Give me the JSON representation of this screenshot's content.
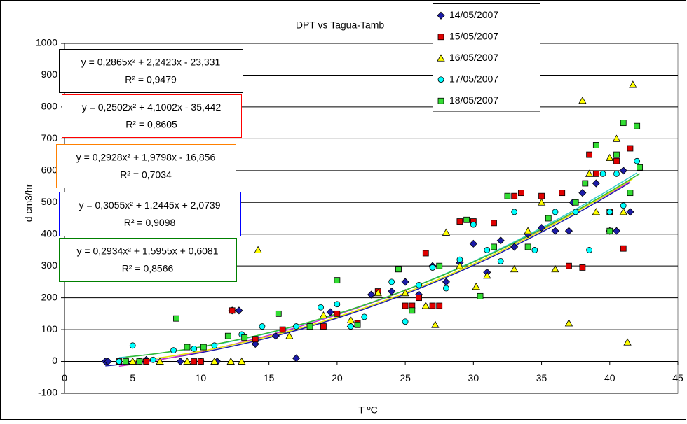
{
  "chart_data": {
    "type": "scatter",
    "title": "DPT vs Tagua-Tamb",
    "x_label": "T ºC",
    "y_label": "d cm3/hr",
    "xlim": [
      0,
      45
    ],
    "xticks": [
      0,
      5,
      10,
      15,
      20,
      25,
      30,
      35,
      40,
      45
    ],
    "ylim": [
      -100,
      1000
    ],
    "yticks": [
      -100,
      0,
      100,
      200,
      300,
      400,
      500,
      600,
      700,
      800,
      900,
      1000
    ],
    "grid": true,
    "legend": "top-right",
    "series": [
      {
        "name": "14/05/2007",
        "color": "#1c1ca8",
        "marker": "diamond",
        "x": [
          3,
          3.2,
          5.5,
          6,
          8.5,
          10,
          11.2,
          12.3,
          12.8,
          14,
          15.5,
          17,
          19.5,
          21,
          22.5,
          24,
          25,
          26,
          27,
          28,
          29,
          30,
          31,
          32,
          33,
          34,
          35,
          36,
          37,
          37.3,
          38,
          39,
          40,
          40.5,
          41,
          41.5
        ],
        "values": [
          0,
          0,
          0,
          5,
          0,
          0,
          0,
          160,
          160,
          55,
          80,
          10,
          155,
          110,
          210,
          220,
          250,
          210,
          300,
          250,
          310,
          370,
          280,
          380,
          360,
          400,
          420,
          410,
          410,
          500,
          530,
          560,
          410,
          410,
          600,
          470
        ]
      },
      {
        "name": "15/05/2007",
        "color": "#e00000",
        "marker": "square",
        "x": [
          4,
          6,
          9.5,
          10,
          12.3,
          14,
          16,
          19,
          20,
          21.5,
          23,
          24.5,
          25,
          25.5,
          26,
          26.5,
          27,
          27.5,
          29,
          30,
          31.5,
          33,
          33.5,
          35,
          36.5,
          37,
          38,
          38.5,
          39,
          40,
          40.5,
          41,
          41.5
        ],
        "values": [
          0,
          0,
          0,
          0,
          160,
          70,
          100,
          110,
          150,
          120,
          220,
          290,
          175,
          175,
          200,
          340,
          175,
          175,
          440,
          440,
          435,
          520,
          530,
          520,
          530,
          300,
          295,
          650,
          590,
          470,
          630,
          355,
          670
        ]
      },
      {
        "name": "16/05/2007",
        "color": "#ffff00",
        "marker": "triangle",
        "x": [
          5,
          7,
          9,
          11,
          12.2,
          13,
          14.2,
          16.5,
          19,
          21,
          23,
          25,
          26.5,
          27.2,
          28,
          29,
          30.2,
          31,
          33,
          34,
          35,
          36,
          37,
          38,
          38.5,
          39,
          40,
          40.5,
          41,
          41.3,
          41.7
        ],
        "values": [
          0,
          0,
          0,
          0,
          0,
          0,
          350,
          80,
          145,
          130,
          215,
          215,
          175,
          115,
          405,
          300,
          235,
          270,
          290,
          410,
          500,
          290,
          120,
          820,
          590,
          470,
          640,
          700,
          470,
          60,
          870
        ]
      },
      {
        "name": "17/05/2007",
        "color": "#00ffff",
        "marker": "circle",
        "x": [
          4,
          5,
          6.5,
          8,
          9.5,
          11,
          13,
          14.5,
          17,
          18.8,
          20,
          21,
          22,
          24,
          25,
          26,
          27,
          28,
          29,
          30,
          31,
          32,
          33,
          34.5,
          36,
          37.5,
          38.5,
          39.5,
          40,
          40.5,
          41,
          42
        ],
        "values": [
          0,
          50,
          5,
          35,
          40,
          50,
          85,
          110,
          110,
          170,
          180,
          110,
          140,
          250,
          125,
          240,
          295,
          230,
          320,
          430,
          350,
          315,
          470,
          350,
          470,
          470,
          350,
          590,
          470,
          590,
          490,
          630
        ]
      },
      {
        "name": "18/05/2007",
        "color": "#33dd33",
        "marker": "square",
        "x": [
          4.5,
          5.5,
          8.2,
          9,
          10.2,
          12,
          13.2,
          15.7,
          18,
          20,
          21.5,
          24.5,
          25.5,
          27.5,
          29.5,
          30.5,
          31.5,
          32.5,
          34,
          35.5,
          37.5,
          38.2,
          39,
          40,
          40.5,
          41,
          41.5,
          42,
          42.2
        ],
        "values": [
          0,
          0,
          135,
          45,
          45,
          80,
          75,
          150,
          110,
          255,
          115,
          290,
          160,
          300,
          445,
          205,
          360,
          520,
          360,
          450,
          500,
          560,
          680,
          410,
          650,
          750,
          530,
          740,
          610
        ]
      }
    ],
    "trendlines": [
      {
        "equation": "y = 0,2865x² + 2,2423x - 23,331",
        "r2": "R² = 0,9479",
        "color": "#1c1ca8",
        "box_color": "#000000"
      },
      {
        "equation": "y = 0,2502x² + 4,1002x - 35,442",
        "r2": "R² = 0,8605",
        "color": "#cc33cc",
        "box_color": "#ff0000"
      },
      {
        "equation": "y = 0,2928x² + 1,9798x - 16,856",
        "r2": "R² = 0,7034",
        "color": "#e8e800",
        "box_color": "#ff8000"
      },
      {
        "equation": "y = 0,3055x² + 1,2445x + 2,0739",
        "r2": "R² = 0,9098",
        "color": "#33cccc",
        "box_color": "#0000ff"
      },
      {
        "equation": "y = 0,2934x² + 1,5955x + 0,6081",
        "r2": "R² = 0,8566",
        "color": "#33bb33",
        "box_color": "#008000"
      }
    ]
  }
}
